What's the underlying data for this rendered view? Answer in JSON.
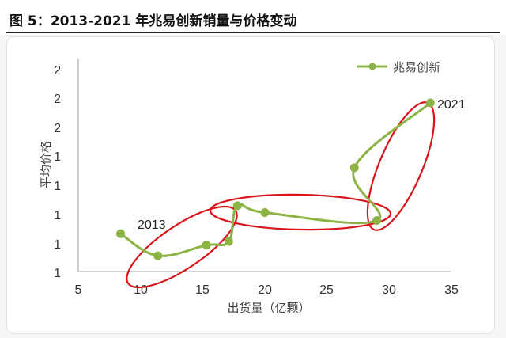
{
  "page": {
    "title": "图 5：2013-2021 年兆易创新销量与价格变动"
  },
  "chart_data": {
    "type": "line",
    "title": "",
    "xlabel": "出货量（亿颗）",
    "ylabel": "平均价格",
    "xlim": [
      5,
      35
    ],
    "xticks": [
      "5",
      "10",
      "15",
      "20",
      "25",
      "30",
      "35"
    ],
    "yticks": [
      "1",
      "1",
      "1",
      "1",
      "1",
      "2",
      "2",
      "2"
    ],
    "ylim": [
      0,
      7
    ],
    "grid": false,
    "legend": "top-right",
    "series": [
      {
        "name": "兆易创新",
        "color": "#8cb444",
        "x": [
          8.4,
          11.4,
          15.3,
          17.1,
          17.8,
          20.0,
          29.0,
          27.2,
          33.3
        ],
        "y": [
          2.82,
          1.76,
          2.27,
          2.45,
          4.17,
          3.84,
          3.46,
          6.0,
          9.12
        ]
      }
    ],
    "annotations": [
      {
        "text": "2013",
        "x": 8.4,
        "y": 2.82
      },
      {
        "text": "2021",
        "x": 33.3,
        "y": 9.12
      }
    ],
    "highlights": {
      "color": "#d8151b",
      "count": 3
    }
  }
}
